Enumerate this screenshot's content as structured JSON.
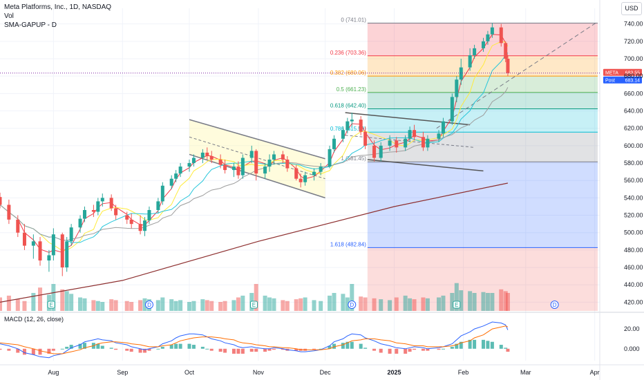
{
  "header": {
    "title": "Meta Platforms, Inc., 1D, NASDAQ",
    "vol": "Vol",
    "indicator": "SMA-GAPUP - D"
  },
  "currency_button": "USD",
  "macd_label": "MACD (12, 26, close)",
  "colors": {
    "up": "#26a69a",
    "down": "#ef5350",
    "price_line": "#7b1fa2",
    "fib_0": "#787b86",
    "fib_236": "#f23645",
    "fib_382": "#ff9800",
    "fib_5": "#4caf50",
    "fib_618": "#089981",
    "fib_786": "#00bcd4",
    "fib_1": "#787b86",
    "fib_1618": "#2962ff",
    "macd_line": "#2962ff",
    "signal_line": "#ff6d00"
  },
  "chart_data": {
    "type": "candlestick",
    "symbol": "META",
    "timeframe": "1D",
    "exchange": "NASDAQ",
    "x_ticks": [
      "Aug",
      "Sep",
      "Oct",
      "Nov",
      "Dec",
      "2025",
      "Feb",
      "Mar",
      "Apr"
    ],
    "x_tick_months": [
      "2024-08",
      "2024-09",
      "2024-10",
      "2024-11",
      "2024-12",
      "2025-01",
      "2025-02",
      "2025-03",
      "2025-04"
    ],
    "y_ticks": [
      420,
      440,
      460,
      480,
      500,
      520,
      540,
      560,
      580,
      600,
      620,
      640,
      660,
      680,
      700,
      720,
      740
    ],
    "y_range": [
      410,
      758
    ],
    "price_tags": [
      {
        "label": "META",
        "value": 683.55
      },
      {
        "label": "Post",
        "value": 683.14
      }
    ],
    "fibonacci": [
      {
        "label": "0 (741.01)",
        "level": 741.01
      },
      {
        "label": "0.236 (703.36)",
        "level": 703.36
      },
      {
        "label": "0.382 (680.06)",
        "level": 680.06
      },
      {
        "label": "0.5 (661.23)",
        "level": 661.23
      },
      {
        "label": "0.618 (642.40)",
        "level": 642.4
      },
      {
        "label": "0.786 (615.59)",
        "level": 615.59
      },
      {
        "label": "1 (581.45)",
        "level": 581.45
      },
      {
        "label": "1.618 (482.84)",
        "level": 482.84
      }
    ],
    "earnings_markers": [
      {
        "label": "E",
        "date": "2024-07-31"
      },
      {
        "label": "E",
        "date": "2024-10-30"
      },
      {
        "label": "E",
        "date": "2025-01-29"
      }
    ],
    "dividend_markers": [
      {
        "label": "D",
        "date": "2024-09-13"
      },
      {
        "label": "D",
        "date": "2024-12-13"
      },
      {
        "label": "D",
        "date": "2025-03-14"
      }
    ],
    "candles": [
      {
        "d": "2024-07-08",
        "o": 541,
        "h": 546,
        "l": 528,
        "c": 532
      },
      {
        "d": "2024-07-12",
        "o": 532,
        "h": 538,
        "l": 510,
        "c": 515
      },
      {
        "d": "2024-07-16",
        "o": 515,
        "h": 520,
        "l": 495,
        "c": 500
      },
      {
        "d": "2024-07-19",
        "o": 500,
        "h": 510,
        "l": 480,
        "c": 485
      },
      {
        "d": "2024-07-23",
        "o": 485,
        "h": 498,
        "l": 470,
        "c": 490
      },
      {
        "d": "2024-07-26",
        "o": 490,
        "h": 495,
        "l": 462,
        "c": 468
      },
      {
        "d": "2024-07-30",
        "o": 468,
        "h": 480,
        "l": 455,
        "c": 474
      },
      {
        "d": "2024-08-01",
        "o": 474,
        "h": 505,
        "l": 468,
        "c": 498
      },
      {
        "d": "2024-08-05",
        "o": 498,
        "h": 500,
        "l": 450,
        "c": 460
      },
      {
        "d": "2024-08-07",
        "o": 460,
        "h": 495,
        "l": 455,
        "c": 490
      },
      {
        "d": "2024-08-09",
        "o": 490,
        "h": 510,
        "l": 485,
        "c": 506
      },
      {
        "d": "2024-08-13",
        "o": 506,
        "h": 520,
        "l": 500,
        "c": 516
      },
      {
        "d": "2024-08-15",
        "o": 516,
        "h": 530,
        "l": 512,
        "c": 526
      },
      {
        "d": "2024-08-19",
        "o": 526,
        "h": 532,
        "l": 518,
        "c": 524
      },
      {
        "d": "2024-08-21",
        "o": 524,
        "h": 540,
        "l": 520,
        "c": 536
      },
      {
        "d": "2024-08-23",
        "o": 536,
        "h": 545,
        "l": 530,
        "c": 540
      },
      {
        "d": "2024-08-27",
        "o": 540,
        "h": 544,
        "l": 525,
        "c": 528
      },
      {
        "d": "2024-08-29",
        "o": 528,
        "h": 532,
        "l": 515,
        "c": 520
      },
      {
        "d": "2024-09-03",
        "o": 520,
        "h": 524,
        "l": 510,
        "c": 515
      },
      {
        "d": "2024-09-05",
        "o": 515,
        "h": 522,
        "l": 505,
        "c": 510
      },
      {
        "d": "2024-09-09",
        "o": 510,
        "h": 520,
        "l": 498,
        "c": 502
      },
      {
        "d": "2024-09-11",
        "o": 502,
        "h": 518,
        "l": 496,
        "c": 514
      },
      {
        "d": "2024-09-13",
        "o": 514,
        "h": 530,
        "l": 510,
        "c": 526
      },
      {
        "d": "2024-09-17",
        "o": 526,
        "h": 540,
        "l": 522,
        "c": 536
      },
      {
        "d": "2024-09-19",
        "o": 536,
        "h": 558,
        "l": 532,
        "c": 554
      },
      {
        "d": "2024-09-23",
        "o": 554,
        "h": 566,
        "l": 550,
        "c": 562
      },
      {
        "d": "2024-09-25",
        "o": 562,
        "h": 572,
        "l": 558,
        "c": 568
      },
      {
        "d": "2024-09-27",
        "o": 568,
        "h": 580,
        "l": 564,
        "c": 576
      },
      {
        "d": "2024-10-01",
        "o": 576,
        "h": 584,
        "l": 570,
        "c": 580
      },
      {
        "d": "2024-10-03",
        "o": 580,
        "h": 590,
        "l": 576,
        "c": 586
      },
      {
        "d": "2024-10-07",
        "o": 586,
        "h": 596,
        "l": 580,
        "c": 592
      },
      {
        "d": "2024-10-09",
        "o": 592,
        "h": 598,
        "l": 584,
        "c": 588
      },
      {
        "d": "2024-10-11",
        "o": 588,
        "h": 594,
        "l": 580,
        "c": 584
      },
      {
        "d": "2024-10-15",
        "o": 584,
        "h": 590,
        "l": 574,
        "c": 578
      },
      {
        "d": "2024-10-17",
        "o": 578,
        "h": 584,
        "l": 568,
        "c": 572
      },
      {
        "d": "2024-10-21",
        "o": 572,
        "h": 580,
        "l": 564,
        "c": 576
      },
      {
        "d": "2024-10-23",
        "o": 576,
        "h": 582,
        "l": 562,
        "c": 566
      },
      {
        "d": "2024-10-25",
        "o": 566,
        "h": 590,
        "l": 562,
        "c": 586
      },
      {
        "d": "2024-10-29",
        "o": 586,
        "h": 600,
        "l": 580,
        "c": 594
      },
      {
        "d": "2024-10-31",
        "o": 594,
        "h": 596,
        "l": 560,
        "c": 568
      },
      {
        "d": "2024-11-04",
        "o": 568,
        "h": 580,
        "l": 562,
        "c": 576
      },
      {
        "d": "2024-11-06",
        "o": 576,
        "h": 590,
        "l": 570,
        "c": 584
      },
      {
        "d": "2024-11-08",
        "o": 584,
        "h": 594,
        "l": 578,
        "c": 590
      },
      {
        "d": "2024-11-12",
        "o": 590,
        "h": 594,
        "l": 580,
        "c": 584
      },
      {
        "d": "2024-11-14",
        "o": 584,
        "h": 588,
        "l": 570,
        "c": 574
      },
      {
        "d": "2024-11-18",
        "o": 574,
        "h": 578,
        "l": 560,
        "c": 562
      },
      {
        "d": "2024-11-20",
        "o": 562,
        "h": 568,
        "l": 552,
        "c": 558
      },
      {
        "d": "2024-11-22",
        "o": 558,
        "h": 570,
        "l": 554,
        "c": 566
      },
      {
        "d": "2024-11-26",
        "o": 566,
        "h": 574,
        "l": 560,
        "c": 570
      },
      {
        "d": "2024-11-29",
        "o": 570,
        "h": 580,
        "l": 566,
        "c": 576
      },
      {
        "d": "2024-12-03",
        "o": 576,
        "h": 600,
        "l": 574,
        "c": 596
      },
      {
        "d": "2024-12-05",
        "o": 596,
        "h": 612,
        "l": 592,
        "c": 608
      },
      {
        "d": "2024-12-09",
        "o": 608,
        "h": 622,
        "l": 604,
        "c": 618
      },
      {
        "d": "2024-12-11",
        "o": 618,
        "h": 632,
        "l": 614,
        "c": 628
      },
      {
        "d": "2024-12-13",
        "o": 628,
        "h": 638,
        "l": 622,
        "c": 630
      },
      {
        "d": "2024-12-17",
        "o": 630,
        "h": 634,
        "l": 612,
        "c": 616
      },
      {
        "d": "2024-12-19",
        "o": 616,
        "h": 622,
        "l": 596,
        "c": 600
      },
      {
        "d": "2024-12-23",
        "o": 600,
        "h": 606,
        "l": 582,
        "c": 586
      },
      {
        "d": "2024-12-26",
        "o": 586,
        "h": 604,
        "l": 582,
        "c": 600
      },
      {
        "d": "2024-12-30",
        "o": 600,
        "h": 612,
        "l": 594,
        "c": 606
      },
      {
        "d": "2025-01-02",
        "o": 606,
        "h": 610,
        "l": 592,
        "c": 598
      },
      {
        "d": "2025-01-06",
        "o": 598,
        "h": 612,
        "l": 594,
        "c": 608
      },
      {
        "d": "2025-01-08",
        "o": 608,
        "h": 622,
        "l": 604,
        "c": 618
      },
      {
        "d": "2025-01-10",
        "o": 618,
        "h": 624,
        "l": 606,
        "c": 610
      },
      {
        "d": "2025-01-14",
        "o": 610,
        "h": 616,
        "l": 594,
        "c": 598
      },
      {
        "d": "2025-01-16",
        "o": 598,
        "h": 612,
        "l": 594,
        "c": 608
      },
      {
        "d": "2025-01-21",
        "o": 608,
        "h": 618,
        "l": 604,
        "c": 614
      },
      {
        "d": "2025-01-23",
        "o": 614,
        "h": 632,
        "l": 610,
        "c": 628
      },
      {
        "d": "2025-01-27",
        "o": 628,
        "h": 660,
        "l": 624,
        "c": 656
      },
      {
        "d": "2025-01-29",
        "o": 656,
        "h": 680,
        "l": 650,
        "c": 676
      },
      {
        "d": "2025-01-31",
        "o": 676,
        "h": 700,
        "l": 670,
        "c": 690
      },
      {
        "d": "2025-02-04",
        "o": 690,
        "h": 712,
        "l": 686,
        "c": 704
      },
      {
        "d": "2025-02-06",
        "o": 704,
        "h": 716,
        "l": 700,
        "c": 712
      },
      {
        "d": "2025-02-10",
        "o": 712,
        "h": 724,
        "l": 708,
        "c": 720
      },
      {
        "d": "2025-02-12",
        "o": 720,
        "h": 732,
        "l": 716,
        "c": 728
      },
      {
        "d": "2025-02-14",
        "o": 728,
        "h": 741,
        "l": 724,
        "c": 736
      },
      {
        "d": "2025-02-18",
        "o": 736,
        "h": 740,
        "l": 714,
        "c": 718
      },
      {
        "d": "2025-02-20",
        "o": 718,
        "h": 720,
        "l": 696,
        "c": 700
      },
      {
        "d": "2025-02-21",
        "o": 700,
        "h": 704,
        "l": 680,
        "c": 683.55
      }
    ],
    "volume_scale": [
      0,
      100
    ],
    "volume": [
      30,
      34,
      26,
      22,
      40,
      52,
      36,
      60,
      48,
      44,
      38,
      30,
      28,
      24,
      22,
      20,
      26,
      24,
      22,
      20,
      24,
      28,
      26,
      24,
      30,
      26,
      22,
      24,
      20,
      22,
      26,
      24,
      22,
      20,
      22,
      24,
      30,
      34,
      40,
      60,
      34,
      30,
      28,
      24,
      22,
      26,
      28,
      30,
      24,
      22,
      34,
      40,
      38,
      30,
      60,
      32,
      30,
      28,
      26,
      24,
      30,
      34,
      28,
      26,
      30,
      28,
      30,
      34,
      40,
      62,
      46,
      44,
      40,
      42,
      40,
      40,
      48,
      44,
      40
    ],
    "macd": {
      "y_ticks": [
        20.0,
        0.0
      ],
      "y_range": [
        -12,
        34
      ],
      "macd": [
        5,
        3,
        0,
        -4,
        -6,
        -8,
        -9,
        -7,
        -5,
        -2,
        1,
        4,
        7,
        9,
        10,
        9,
        8,
        6,
        4,
        2,
        0,
        -1,
        0,
        2,
        5,
        8,
        11,
        13,
        15,
        15,
        14,
        12,
        10,
        8,
        6,
        4,
        2,
        1,
        2,
        1,
        0,
        0,
        1,
        0,
        -1,
        -2,
        -3,
        -3,
        -2,
        -1,
        3,
        7,
        10,
        13,
        15,
        14,
        11,
        8,
        5,
        3,
        1,
        0,
        1,
        2,
        1,
        0,
        1,
        2,
        5,
        9,
        13,
        17,
        20,
        23,
        25,
        27,
        26,
        24,
        19
      ],
      "signal": [
        6,
        5,
        4,
        2,
        0,
        -2,
        -4,
        -5,
        -5,
        -4,
        -3,
        -1,
        1,
        3,
        5,
        6,
        7,
        7,
        6,
        5,
        4,
        3,
        2,
        2,
        3,
        4,
        6,
        8,
        10,
        11,
        12,
        12,
        12,
        11,
        10,
        9,
        7,
        6,
        5,
        4,
        3,
        2,
        2,
        1,
        1,
        0,
        -1,
        -1,
        -1,
        -1,
        0,
        2,
        4,
        6,
        8,
        9,
        10,
        10,
        9,
        8,
        6,
        5,
        4,
        3,
        3,
        2,
        2,
        2,
        3,
        4,
        6,
        8,
        11,
        14,
        17,
        20,
        22,
        23,
        22
      ],
      "histogram": [
        -1,
        -2,
        -4,
        -6,
        -6,
        -6,
        -5,
        -2,
        0,
        2,
        4,
        5,
        6,
        6,
        5,
        3,
        1,
        -1,
        -2,
        -3,
        -4,
        -4,
        -2,
        0,
        2,
        4,
        5,
        5,
        5,
        4,
        2,
        0,
        -2,
        -3,
        -4,
        -5,
        -5,
        -5,
        -3,
        -3,
        -3,
        -2,
        -1,
        -1,
        -2,
        -2,
        -2,
        -2,
        -1,
        0,
        3,
        5,
        6,
        7,
        7,
        5,
        1,
        -2,
        -4,
        -5,
        -5,
        -5,
        -3,
        -1,
        -2,
        -2,
        -1,
        0,
        2,
        5,
        7,
        9,
        9,
        9,
        8,
        7,
        4,
        1,
        -3
      ]
    }
  }
}
